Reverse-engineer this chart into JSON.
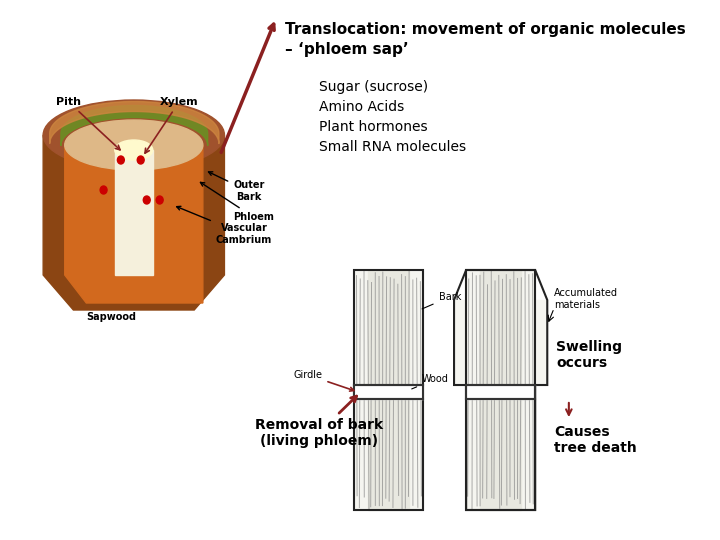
{
  "title_line1": "Translocation: movement of organic molecules",
  "title_line2": "– ‘phloem sap’",
  "bullet1": "Sugar (sucrose)",
  "bullet2": "Amino Acids",
  "bullet3": "Plant hormones",
  "bullet4": "Small RNA molecules",
  "arrow_color": "#8B2020",
  "text_color": "#000000",
  "bg_color": "#ffffff",
  "label_pith": "Pith",
  "label_xylem": "Xylem",
  "label_outer_bark": "Outer\nBark",
  "label_phloem": "Phloem",
  "label_vascular": "Vascular\nCambrium",
  "label_sapwood": "Sapwood",
  "label_bark": "Bark",
  "label_wood": "Wood",
  "label_girdle": "Girdle",
  "label_accum": "Accumulated\nmaterials",
  "label_swelling": "Swelling\noccurs",
  "label_removal": "Removal of bark\n(living phloem)",
  "label_causes": "Causes\ntree death",
  "font_title": 11,
  "font_body": 10,
  "font_small": 8
}
